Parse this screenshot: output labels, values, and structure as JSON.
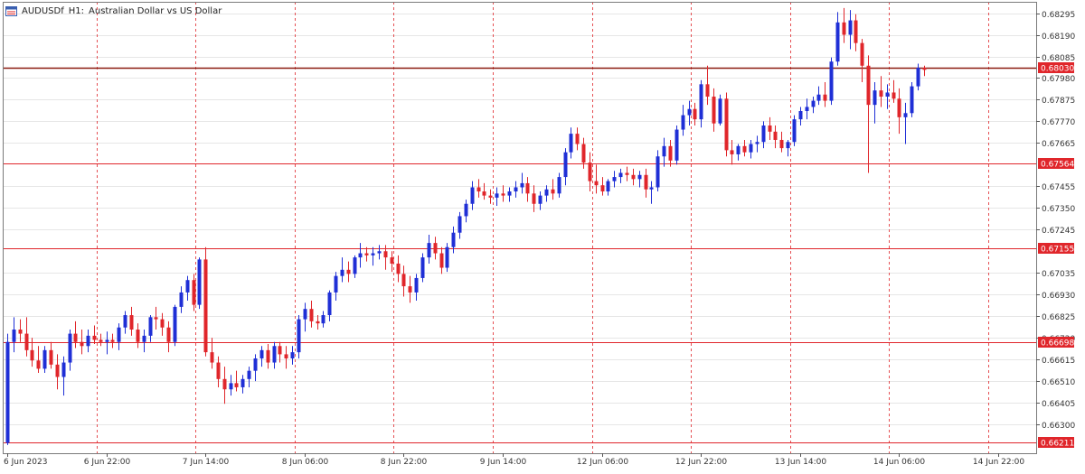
{
  "header": {
    "symbol": "AUDUSDf",
    "timeframe": "H1:",
    "description": "Australian Dollar vs US Dollar",
    "icon": "chart-window-icon"
  },
  "colors": {
    "background": "#ffffff",
    "bull": "#1f2fd6",
    "bear": "#e0262b",
    "grid_v": "#e0262b",
    "grid_h": "#e6e6e6",
    "level_line": "#e0262b",
    "price_line": "#8b1a10",
    "axis_text": "#333333"
  },
  "chart_data": {
    "type": "candlestick",
    "ylim": [
      0.6616,
      0.6835
    ],
    "y_ticks": [
      "0.68295",
      "0.68190",
      "0.68085",
      "0.67980",
      "0.67875",
      "0.67770",
      "0.67665",
      "0.67455",
      "0.67350",
      "0.67245",
      "0.67035",
      "0.66930",
      "0.66825",
      "0.66720",
      "0.66615",
      "0.66510",
      "0.66405",
      "0.66300"
    ],
    "x_labels": [
      "6 Jun 2023",
      "6 Jun 22:00",
      "7 Jun 14:00",
      "8 Jun 06:00",
      "8 Jun 22:00",
      "9 Jun 14:00",
      "12 Jun 06:00",
      "12 Jun 22:00",
      "13 Jun 14:00",
      "14 Jun 06:00",
      "14 Jun 22:00"
    ],
    "x_label_index": [
      0,
      16,
      32,
      48,
      64,
      80,
      96,
      112,
      128,
      144,
      160
    ],
    "levels": [
      {
        "value": 0.6803,
        "label": "0.68030",
        "kind": "current"
      },
      {
        "value": 0.67564,
        "label": "0.67564",
        "kind": "level"
      },
      {
        "value": 0.67155,
        "label": "0.67155",
        "kind": "level"
      },
      {
        "value": 0.66698,
        "label": "0.66698",
        "kind": "level"
      },
      {
        "value": 0.66211,
        "label": "0.66211",
        "kind": "level"
      }
    ],
    "grid": "on",
    "candles": [
      [
        0.6621,
        0.6674,
        0.662,
        0.667
      ],
      [
        0.667,
        0.6682,
        0.6665,
        0.6676
      ],
      [
        0.6676,
        0.6681,
        0.667,
        0.6674
      ],
      [
        0.6674,
        0.6682,
        0.6663,
        0.6666
      ],
      [
        0.6666,
        0.6672,
        0.6658,
        0.6661
      ],
      [
        0.6661,
        0.6668,
        0.6655,
        0.6657
      ],
      [
        0.6657,
        0.6668,
        0.6655,
        0.6666
      ],
      [
        0.6666,
        0.667,
        0.6657,
        0.6659
      ],
      [
        0.6659,
        0.6664,
        0.6647,
        0.6653
      ],
      [
        0.6653,
        0.6663,
        0.6644,
        0.666
      ],
      [
        0.666,
        0.6676,
        0.6656,
        0.6674
      ],
      [
        0.6674,
        0.668,
        0.6667,
        0.667
      ],
      [
        0.667,
        0.6676,
        0.6664,
        0.6668
      ],
      [
        0.6668,
        0.6676,
        0.6665,
        0.6673
      ],
      [
        0.6673,
        0.6678,
        0.6669,
        0.6671
      ],
      [
        0.6671,
        0.6674,
        0.6668,
        0.667
      ],
      [
        0.667,
        0.6675,
        0.6664,
        0.6671
      ],
      [
        0.6671,
        0.6674,
        0.6667,
        0.667
      ],
      [
        0.667,
        0.6679,
        0.6666,
        0.6677
      ],
      [
        0.6677,
        0.6685,
        0.6674,
        0.6683
      ],
      [
        0.6683,
        0.6687,
        0.6673,
        0.6676
      ],
      [
        0.6676,
        0.6679,
        0.6667,
        0.667
      ],
      [
        0.667,
        0.6676,
        0.6665,
        0.6673
      ],
      [
        0.6673,
        0.6683,
        0.667,
        0.6682
      ],
      [
        0.6682,
        0.6687,
        0.6676,
        0.6681
      ],
      [
        0.6681,
        0.6684,
        0.6673,
        0.6677
      ],
      [
        0.6677,
        0.668,
        0.6665,
        0.667
      ],
      [
        0.667,
        0.6688,
        0.6668,
        0.6687
      ],
      [
        0.6687,
        0.6697,
        0.6684,
        0.6694
      ],
      [
        0.6694,
        0.6702,
        0.669,
        0.67
      ],
      [
        0.67,
        0.6703,
        0.6685,
        0.6688
      ],
      [
        0.6688,
        0.6711,
        0.6686,
        0.671
      ],
      [
        0.671,
        0.6716,
        0.6663,
        0.6665
      ],
      [
        0.6665,
        0.6672,
        0.6657,
        0.666
      ],
      [
        0.666,
        0.6663,
        0.6648,
        0.6652
      ],
      [
        0.6652,
        0.6658,
        0.664,
        0.6647
      ],
      [
        0.6647,
        0.6654,
        0.6644,
        0.665
      ],
      [
        0.665,
        0.6656,
        0.6646,
        0.6648
      ],
      [
        0.6648,
        0.6654,
        0.6645,
        0.6652
      ],
      [
        0.6652,
        0.6658,
        0.6648,
        0.6656
      ],
      [
        0.6656,
        0.6664,
        0.6651,
        0.6662
      ],
      [
        0.6662,
        0.6668,
        0.6658,
        0.6666
      ],
      [
        0.6666,
        0.6669,
        0.6657,
        0.666
      ],
      [
        0.666,
        0.667,
        0.6657,
        0.6668
      ],
      [
        0.6668,
        0.667,
        0.666,
        0.6664
      ],
      [
        0.6664,
        0.6668,
        0.6657,
        0.6662
      ],
      [
        0.6662,
        0.6668,
        0.6659,
        0.6665
      ],
      [
        0.6665,
        0.6683,
        0.6662,
        0.6681
      ],
      [
        0.6681,
        0.6689,
        0.6675,
        0.6686
      ],
      [
        0.6686,
        0.669,
        0.6677,
        0.668
      ],
      [
        0.668,
        0.6683,
        0.6676,
        0.6679
      ],
      [
        0.6679,
        0.6685,
        0.6677,
        0.6683
      ],
      [
        0.6683,
        0.6695,
        0.668,
        0.6694
      ],
      [
        0.6694,
        0.6704,
        0.669,
        0.6702
      ],
      [
        0.6702,
        0.6711,
        0.6699,
        0.6705
      ],
      [
        0.6705,
        0.6709,
        0.6699,
        0.6703
      ],
      [
        0.6703,
        0.6712,
        0.6701,
        0.6711
      ],
      [
        0.6711,
        0.6718,
        0.6706,
        0.6713
      ],
      [
        0.6713,
        0.6716,
        0.6709,
        0.6712
      ],
      [
        0.6712,
        0.6716,
        0.6707,
        0.6713
      ],
      [
        0.6713,
        0.6717,
        0.671,
        0.6714
      ],
      [
        0.6714,
        0.6717,
        0.6705,
        0.6711
      ],
      [
        0.6711,
        0.6714,
        0.6704,
        0.6708
      ],
      [
        0.6708,
        0.6712,
        0.6699,
        0.6703
      ],
      [
        0.6703,
        0.6707,
        0.6692,
        0.6697
      ],
      [
        0.6697,
        0.6702,
        0.6689,
        0.6694
      ],
      [
        0.6694,
        0.6703,
        0.669,
        0.6701
      ],
      [
        0.6701,
        0.6713,
        0.6699,
        0.6711
      ],
      [
        0.6711,
        0.6722,
        0.6708,
        0.6718
      ],
      [
        0.6718,
        0.6721,
        0.671,
        0.6713
      ],
      [
        0.6713,
        0.6716,
        0.6703,
        0.6706
      ],
      [
        0.6706,
        0.6718,
        0.6704,
        0.6716
      ],
      [
        0.6716,
        0.6726,
        0.6713,
        0.6723
      ],
      [
        0.6723,
        0.6733,
        0.672,
        0.6731
      ],
      [
        0.6731,
        0.6739,
        0.6728,
        0.6737
      ],
      [
        0.6737,
        0.6748,
        0.6734,
        0.6745
      ],
      [
        0.6745,
        0.6749,
        0.674,
        0.6743
      ],
      [
        0.6743,
        0.6747,
        0.6739,
        0.6741
      ],
      [
        0.6741,
        0.6744,
        0.6737,
        0.674
      ],
      [
        0.674,
        0.6745,
        0.6736,
        0.6742
      ],
      [
        0.6742,
        0.6746,
        0.6738,
        0.6741
      ],
      [
        0.6741,
        0.6745,
        0.6738,
        0.6743
      ],
      [
        0.6743,
        0.6748,
        0.674,
        0.6745
      ],
      [
        0.6745,
        0.6752,
        0.6742,
        0.6747
      ],
      [
        0.6747,
        0.675,
        0.6738,
        0.6742
      ],
      [
        0.6742,
        0.6746,
        0.6733,
        0.6737
      ],
      [
        0.6737,
        0.6743,
        0.6734,
        0.6741
      ],
      [
        0.6741,
        0.6746,
        0.6738,
        0.6744
      ],
      [
        0.6744,
        0.6749,
        0.6739,
        0.6742
      ],
      [
        0.6742,
        0.6752,
        0.674,
        0.675
      ],
      [
        0.675,
        0.6764,
        0.6746,
        0.6762
      ],
      [
        0.6762,
        0.6774,
        0.6759,
        0.6771
      ],
      [
        0.6771,
        0.6774,
        0.6763,
        0.6766
      ],
      [
        0.6766,
        0.6769,
        0.6754,
        0.6757
      ],
      [
        0.6757,
        0.6762,
        0.6743,
        0.6748
      ],
      [
        0.6748,
        0.6756,
        0.6742,
        0.6746
      ],
      [
        0.6746,
        0.675,
        0.6741,
        0.6743
      ],
      [
        0.6743,
        0.6749,
        0.6741,
        0.6748
      ],
      [
        0.6748,
        0.6753,
        0.6745,
        0.675
      ],
      [
        0.675,
        0.6754,
        0.6747,
        0.6752
      ],
      [
        0.6752,
        0.6755,
        0.6748,
        0.6751
      ],
      [
        0.6751,
        0.6754,
        0.6746,
        0.6749
      ],
      [
        0.6749,
        0.6753,
        0.6745,
        0.6751
      ],
      [
        0.6751,
        0.6754,
        0.674,
        0.6744
      ],
      [
        0.6744,
        0.6748,
        0.6737,
        0.6745
      ],
      [
        0.6745,
        0.6763,
        0.6743,
        0.676
      ],
      [
        0.676,
        0.6769,
        0.6755,
        0.6765
      ],
      [
        0.6765,
        0.6768,
        0.6755,
        0.6758
      ],
      [
        0.6758,
        0.6775,
        0.6756,
        0.6773
      ],
      [
        0.6773,
        0.6785,
        0.677,
        0.678
      ],
      [
        0.678,
        0.6787,
        0.6775,
        0.6783
      ],
      [
        0.6783,
        0.6786,
        0.6775,
        0.6778
      ],
      [
        0.6778,
        0.6797,
        0.6774,
        0.6795
      ],
      [
        0.6795,
        0.6804,
        0.6785,
        0.6789
      ],
      [
        0.6789,
        0.6793,
        0.6772,
        0.6776
      ],
      [
        0.6776,
        0.679,
        0.6775,
        0.6788
      ],
      [
        0.6788,
        0.6791,
        0.676,
        0.6763
      ],
      [
        0.6763,
        0.6768,
        0.6756,
        0.6761
      ],
      [
        0.6761,
        0.6766,
        0.6758,
        0.6765
      ],
      [
        0.6765,
        0.6768,
        0.676,
        0.6762
      ],
      [
        0.6762,
        0.6768,
        0.6759,
        0.6766
      ],
      [
        0.6766,
        0.677,
        0.6762,
        0.6767
      ],
      [
        0.6767,
        0.6777,
        0.6764,
        0.6775
      ],
      [
        0.6775,
        0.6779,
        0.6768,
        0.6772
      ],
      [
        0.6772,
        0.6775,
        0.6764,
        0.6768
      ],
      [
        0.6768,
        0.6772,
        0.6762,
        0.6764
      ],
      [
        0.6764,
        0.6768,
        0.676,
        0.6767
      ],
      [
        0.6767,
        0.678,
        0.6765,
        0.6778
      ],
      [
        0.6778,
        0.6784,
        0.6775,
        0.6782
      ],
      [
        0.6782,
        0.6788,
        0.6778,
        0.6784
      ],
      [
        0.6784,
        0.6789,
        0.6781,
        0.6787
      ],
      [
        0.6787,
        0.6794,
        0.6785,
        0.679
      ],
      [
        0.679,
        0.6796,
        0.6784,
        0.6787
      ],
      [
        0.6787,
        0.6808,
        0.6785,
        0.6806
      ],
      [
        0.6806,
        0.683,
        0.6804,
        0.6825
      ],
      [
        0.6825,
        0.6832,
        0.6815,
        0.6819
      ],
      [
        0.6819,
        0.6831,
        0.6812,
        0.6826
      ],
      [
        0.6826,
        0.6829,
        0.6811,
        0.6815
      ],
      [
        0.6815,
        0.6817,
        0.6796,
        0.6804
      ],
      [
        0.6804,
        0.6809,
        0.6752,
        0.6785
      ],
      [
        0.6785,
        0.6796,
        0.6776,
        0.6792
      ],
      [
        0.6792,
        0.6799,
        0.6784,
        0.6789
      ],
      [
        0.6789,
        0.6795,
        0.6783,
        0.6791
      ],
      [
        0.6791,
        0.6797,
        0.6786,
        0.6788
      ],
      [
        0.6788,
        0.6793,
        0.6771,
        0.6779
      ],
      [
        0.6779,
        0.6786,
        0.6766,
        0.6781
      ],
      [
        0.6781,
        0.6796,
        0.6779,
        0.6794
      ],
      [
        0.6794,
        0.6805,
        0.6792,
        0.6803
      ],
      [
        0.6803,
        0.6804,
        0.6799,
        0.6802
      ]
    ]
  }
}
